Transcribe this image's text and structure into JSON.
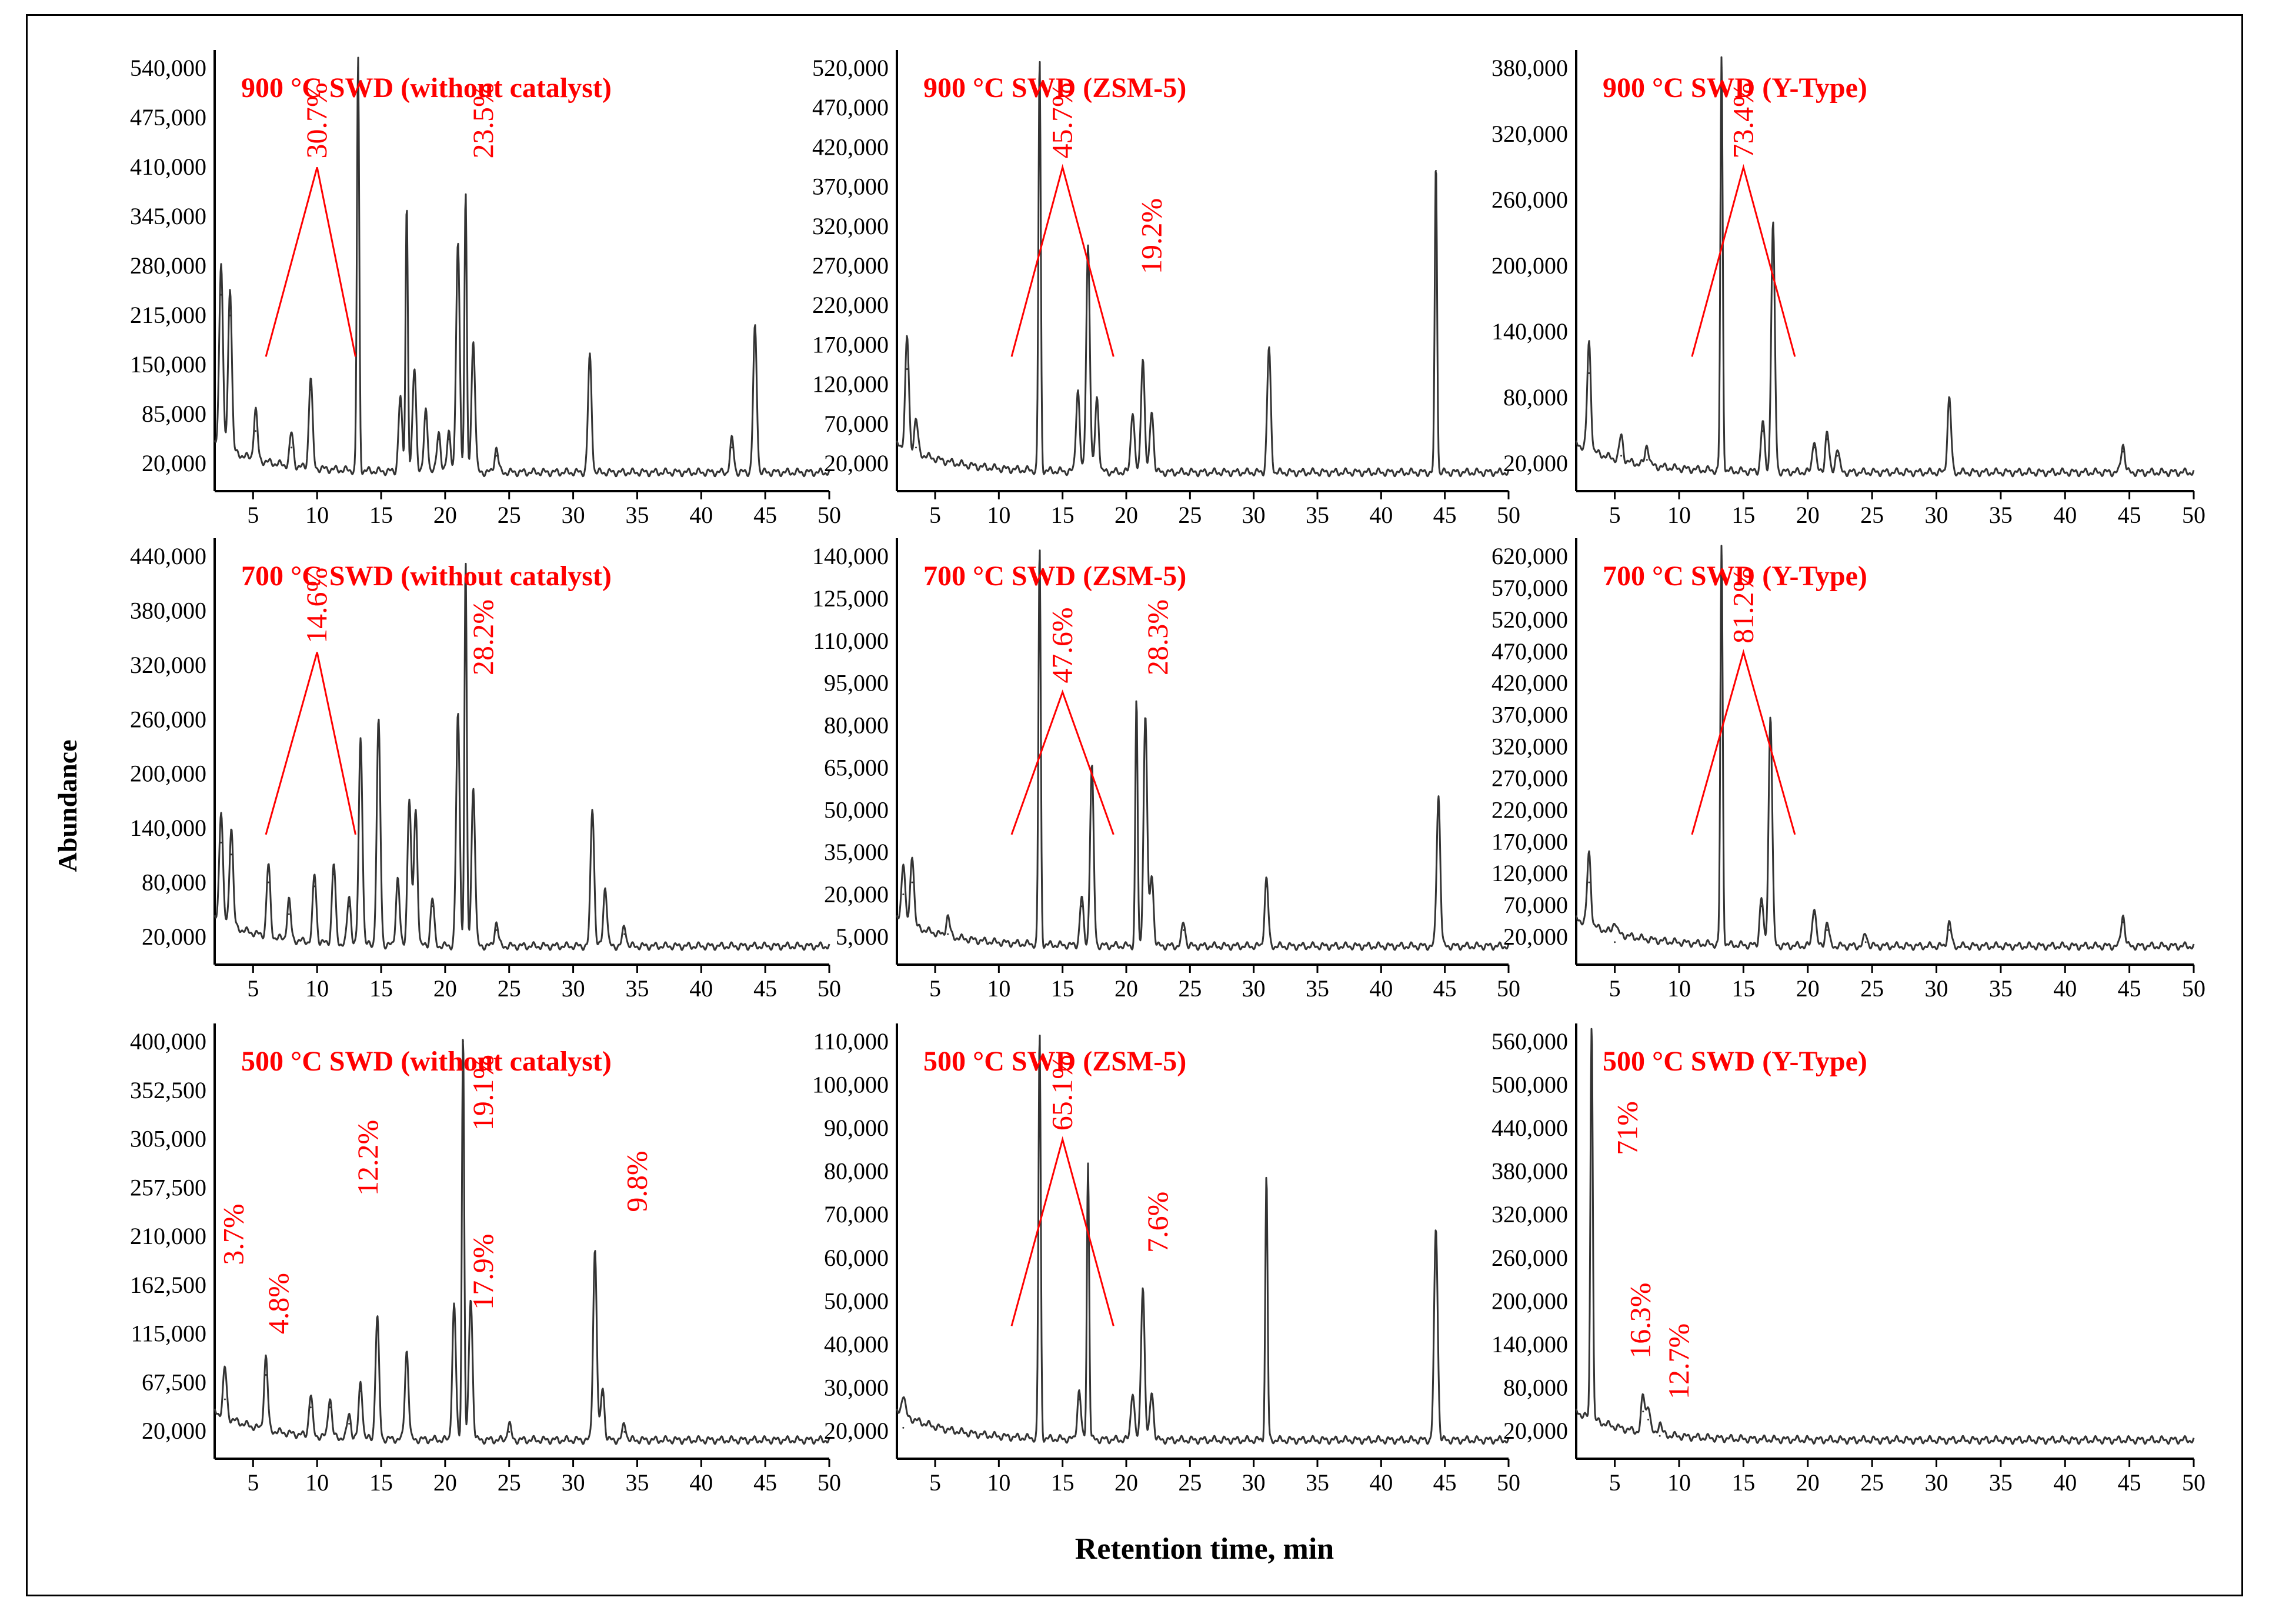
{
  "figure": {
    "ylabel": "Abundance",
    "xlabel": "Retention time, min",
    "colors": {
      "trace": "#333333",
      "annotation": "#ff0000",
      "axis": "#000000"
    }
  },
  "chart_data": [
    {
      "type": "line",
      "title": "900 °C SWD (without catalyst)",
      "xlim": [
        2,
        50
      ],
      "xticks": [
        5,
        10,
        15,
        20,
        25,
        30,
        35,
        40,
        45,
        50
      ],
      "yticks": [
        "20,000",
        "85,000",
        "150,000",
        "215,000",
        "280,000",
        "345,000",
        "410,000",
        "475,000",
        "540,000"
      ],
      "peaks": [
        [
          2.5,
          0.45
        ],
        [
          3.2,
          0.4
        ],
        [
          5.2,
          0.12
        ],
        [
          8.0,
          0.08
        ],
        [
          9.5,
          0.22
        ],
        [
          13.2,
          1.0
        ],
        [
          16.5,
          0.18
        ],
        [
          17.0,
          0.65
        ],
        [
          17.6,
          0.25
        ],
        [
          18.5,
          0.15
        ],
        [
          19.5,
          0.1
        ],
        [
          20.3,
          0.1
        ],
        [
          21.0,
          0.55
        ],
        [
          21.6,
          0.68
        ],
        [
          22.2,
          0.32
        ],
        [
          24.0,
          0.06
        ],
        [
          31.3,
          0.28
        ],
        [
          42.4,
          0.08
        ],
        [
          44.2,
          0.35
        ]
      ],
      "annotations": [
        {
          "text": "30.7%",
          "x": 10,
          "y": 0.78,
          "wedge": [
            6,
            13
          ]
        },
        {
          "text": "23.5%",
          "x": 23,
          "y": 0.78
        }
      ]
    },
    {
      "type": "line",
      "title": "900 °C SWD (ZSM-5)",
      "xlim": [
        2,
        50
      ],
      "xticks": [
        5,
        10,
        15,
        20,
        25,
        30,
        35,
        40,
        45,
        50
      ],
      "yticks": [
        "20,000",
        "70,000",
        "120,000",
        "170,000",
        "220,000",
        "270,000",
        "320,000",
        "370,000",
        "420,000",
        "470,000",
        "520,000"
      ],
      "peaks": [
        [
          2.8,
          0.27
        ],
        [
          3.5,
          0.08
        ],
        [
          13.2,
          1.0
        ],
        [
          16.2,
          0.2
        ],
        [
          17.0,
          0.55
        ],
        [
          17.7,
          0.18
        ],
        [
          20.5,
          0.15
        ],
        [
          21.3,
          0.28
        ],
        [
          22.0,
          0.15
        ],
        [
          31.2,
          0.3
        ],
        [
          44.3,
          0.75
        ]
      ],
      "annotations": [
        {
          "text": "45.7%",
          "x": 15,
          "y": 0.78,
          "wedge": [
            11,
            19
          ]
        },
        {
          "text": "19.2%",
          "x": 22,
          "y": 0.5
        }
      ]
    },
    {
      "type": "line",
      "title": "900 °C SWD (Y-Type)",
      "xlim": [
        2,
        50
      ],
      "xticks": [
        5,
        10,
        15,
        20,
        25,
        30,
        35,
        40,
        45,
        50
      ],
      "yticks": [
        "20,000",
        "80,000",
        "140,000",
        "200,000",
        "260,000",
        "320,000",
        "380,000"
      ],
      "peaks": [
        [
          3.0,
          0.26
        ],
        [
          5.5,
          0.06
        ],
        [
          7.5,
          0.05
        ],
        [
          13.3,
          1.0
        ],
        [
          16.5,
          0.12
        ],
        [
          17.3,
          0.6
        ],
        [
          20.5,
          0.08
        ],
        [
          21.5,
          0.1
        ],
        [
          22.3,
          0.06
        ],
        [
          31.0,
          0.18
        ],
        [
          44.5,
          0.07
        ]
      ],
      "annotations": [
        {
          "text": "73.4%",
          "x": 15,
          "y": 0.78,
          "wedge": [
            11,
            19
          ]
        }
      ]
    },
    {
      "type": "line",
      "title": "700 °C SWD (without catalyst)",
      "xlim": [
        2,
        50
      ],
      "xticks": [
        5,
        10,
        15,
        20,
        25,
        30,
        35,
        40,
        45,
        50
      ],
      "yticks": [
        "20,000",
        "80,000",
        "140,000",
        "200,000",
        "260,000",
        "320,000",
        "380,000",
        "440,000"
      ],
      "peaks": [
        [
          2.5,
          0.28
        ],
        [
          3.3,
          0.25
        ],
        [
          6.2,
          0.18
        ],
        [
          7.8,
          0.1
        ],
        [
          9.8,
          0.17
        ],
        [
          11.3,
          0.2
        ],
        [
          12.5,
          0.12
        ],
        [
          13.4,
          0.52
        ],
        [
          14.8,
          0.56
        ],
        [
          16.3,
          0.17
        ],
        [
          17.2,
          0.37
        ],
        [
          17.7,
          0.34
        ],
        [
          19.0,
          0.12
        ],
        [
          21.0,
          0.58
        ],
        [
          21.6,
          0.97
        ],
        [
          22.2,
          0.4
        ],
        [
          24.0,
          0.06
        ],
        [
          31.5,
          0.35
        ],
        [
          32.5,
          0.15
        ],
        [
          34.0,
          0.05
        ]
      ],
      "annotations": [
        {
          "text": "14.6%",
          "x": 10,
          "y": 0.78,
          "wedge": [
            6,
            13
          ]
        },
        {
          "text": "28.2%",
          "x": 23,
          "y": 0.7
        }
      ]
    },
    {
      "type": "line",
      "title": "700 °C SWD (ZSM-5)",
      "xlim": [
        2,
        50
      ],
      "xticks": [
        5,
        10,
        15,
        20,
        25,
        30,
        35,
        40,
        45,
        50
      ],
      "yticks": [
        "5,000",
        "20,000",
        "35,000",
        "50,000",
        "65,000",
        "80,000",
        "95,000",
        "110,000",
        "125,000",
        "140,000"
      ],
      "peaks": [
        [
          2.5,
          0.15
        ],
        [
          3.2,
          0.18
        ],
        [
          6.0,
          0.05
        ],
        [
          13.2,
          1.0
        ],
        [
          16.5,
          0.12
        ],
        [
          17.3,
          0.45
        ],
        [
          20.8,
          0.62
        ],
        [
          21.5,
          0.58
        ],
        [
          22.0,
          0.18
        ],
        [
          24.5,
          0.06
        ],
        [
          31.0,
          0.17
        ],
        [
          44.5,
          0.38
        ]
      ],
      "annotations": [
        {
          "text": "47.6%",
          "x": 15,
          "y": 0.68,
          "wedge": [
            11,
            19
          ]
        },
        {
          "text": "28.3%",
          "x": 22.5,
          "y": 0.7
        }
      ]
    },
    {
      "type": "line",
      "title": "700 °C SWD (Y-Type)",
      "xlim": [
        2,
        50
      ],
      "xticks": [
        5,
        10,
        15,
        20,
        25,
        30,
        35,
        40,
        45,
        50
      ],
      "yticks": [
        "20,000",
        "70,000",
        "120,000",
        "170,000",
        "220,000",
        "270,000",
        "320,000",
        "370,000",
        "420,000",
        "470,000",
        "520,000",
        "570,000",
        "620,000"
      ],
      "peaks": [
        [
          3.0,
          0.18
        ],
        [
          5.0,
          0.03
        ],
        [
          13.3,
          1.0
        ],
        [
          16.4,
          0.12
        ],
        [
          17.1,
          0.58
        ],
        [
          20.5,
          0.1
        ],
        [
          21.5,
          0.06
        ],
        [
          24.5,
          0.03
        ],
        [
          31.0,
          0.06
        ],
        [
          44.5,
          0.08
        ]
      ],
      "annotations": [
        {
          "text": "81.2%",
          "x": 15,
          "y": 0.78,
          "wedge": [
            11,
            19
          ]
        }
      ]
    },
    {
      "type": "line",
      "title": "500 °C SWD (without catalyst)",
      "xlim": [
        2,
        50
      ],
      "xticks": [
        5,
        10,
        15,
        20,
        25,
        30,
        35,
        40,
        45,
        50
      ],
      "yticks": [
        "20,000",
        "67,500",
        "115,000",
        "162,500",
        "210,000",
        "257,500",
        "305,000",
        "352,500",
        "400,000"
      ],
      "peaks": [
        [
          2.8,
          0.12
        ],
        [
          6.0,
          0.18
        ],
        [
          9.5,
          0.1
        ],
        [
          11.0,
          0.1
        ],
        [
          12.5,
          0.06
        ],
        [
          13.4,
          0.14
        ],
        [
          14.7,
          0.3
        ],
        [
          17.0,
          0.22
        ],
        [
          20.7,
          0.33
        ],
        [
          21.4,
          1.0
        ],
        [
          22.0,
          0.35
        ],
        [
          25.0,
          0.04
        ],
        [
          31.7,
          0.47
        ],
        [
          32.3,
          0.13
        ],
        [
          34.0,
          0.04
        ]
      ],
      "annotations": [
        {
          "text": "3.7%",
          "x": 3.5,
          "y": 0.45
        },
        {
          "text": "4.8%",
          "x": 7,
          "y": 0.28
        },
        {
          "text": "12.2%",
          "x": 14,
          "y": 0.62
        },
        {
          "text": "19.1%",
          "x": 23,
          "y": 0.78
        },
        {
          "text": "17.9%",
          "x": 23,
          "y": 0.34
        },
        {
          "text": "9.8%",
          "x": 35,
          "y": 0.58
        }
      ]
    },
    {
      "type": "line",
      "title": "500 °C SWD (ZSM-5)",
      "xlim": [
        2,
        50
      ],
      "xticks": [
        5,
        10,
        15,
        20,
        25,
        30,
        35,
        40,
        45,
        50
      ],
      "yticks": [
        "20,000",
        "30,000",
        "40,000",
        "50,000",
        "60,000",
        "70,000",
        "80,000",
        "90,000",
        "100,000",
        "110,000"
      ],
      "peaks": [
        [
          2.5,
          0.05
        ],
        [
          13.2,
          1.0
        ],
        [
          16.3,
          0.12
        ],
        [
          17.0,
          0.68
        ],
        [
          20.5,
          0.12
        ],
        [
          21.3,
          0.38
        ],
        [
          22.0,
          0.12
        ],
        [
          31.0,
          0.65
        ],
        [
          44.3,
          0.52
        ]
      ],
      "annotations": [
        {
          "text": "65.1%",
          "x": 15,
          "y": 0.78,
          "wedge": [
            11,
            19
          ]
        },
        {
          "text": "7.6%",
          "x": 22.5,
          "y": 0.48
        }
      ]
    },
    {
      "type": "line",
      "title": "500 °C SWD (Y-Type)",
      "xlim": [
        2,
        50
      ],
      "xticks": [
        5,
        10,
        15,
        20,
        25,
        30,
        35,
        40,
        45,
        50
      ],
      "yticks": [
        "20,000",
        "80,000",
        "140,000",
        "200,000",
        "260,000",
        "320,000",
        "380,000",
        "440,000",
        "500,000",
        "560,000"
      ],
      "peaks": [
        [
          3.2,
          1.0
        ],
        [
          7.2,
          0.09
        ],
        [
          7.6,
          0.07
        ],
        [
          8.5,
          0.03
        ]
      ],
      "annotations": [
        {
          "text": "71%",
          "x": 6,
          "y": 0.72
        },
        {
          "text": "16.3%",
          "x": 7,
          "y": 0.22
        },
        {
          "text": "12.7%",
          "x": 10,
          "y": 0.12
        }
      ]
    }
  ]
}
